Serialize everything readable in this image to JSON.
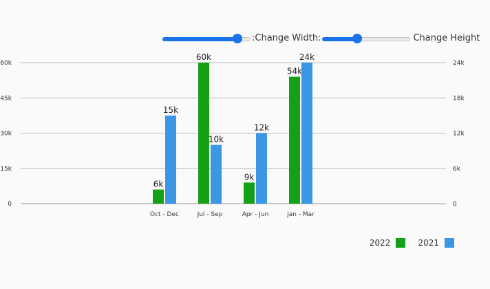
{
  "controls": {
    "width_label": ":Change Width:",
    "height_label": "Change Height",
    "width_value": 0.85,
    "height_value": 0.4
  },
  "colors": {
    "series_2022": "#15a115",
    "series_2021": "#3b97e3",
    "slider_accent": "#1a73e8"
  },
  "chart_data": {
    "type": "bar",
    "categories": [
      "Oct - Dec",
      "Jul - Sep",
      "Apr - Jun",
      "Jan - Mar"
    ],
    "series": [
      {
        "name": "2022",
        "axis": "left",
        "values": [
          6000,
          60000,
          9000,
          54000
        ],
        "labels": [
          "6k",
          "60k",
          "9k",
          "54k"
        ]
      },
      {
        "name": "2021",
        "axis": "right",
        "values": [
          15000,
          10000,
          12000,
          24000
        ],
        "labels": [
          "15k",
          "10k",
          "12k",
          "24k"
        ]
      }
    ],
    "y_left": {
      "ylim": [
        0,
        60000
      ],
      "ticks": [
        0,
        15000,
        30000,
        45000,
        60000
      ],
      "tick_labels": [
        "0",
        "15k",
        "30k",
        "45k",
        "60k"
      ]
    },
    "y_right": {
      "ylim": [
        0,
        24000
      ],
      "ticks": [
        0,
        6000,
        12000,
        18000,
        24000
      ],
      "tick_labels": [
        "0",
        "6k",
        "12k",
        "18k",
        "24k"
      ]
    },
    "grid": true,
    "legend_position": "bottom-right"
  }
}
